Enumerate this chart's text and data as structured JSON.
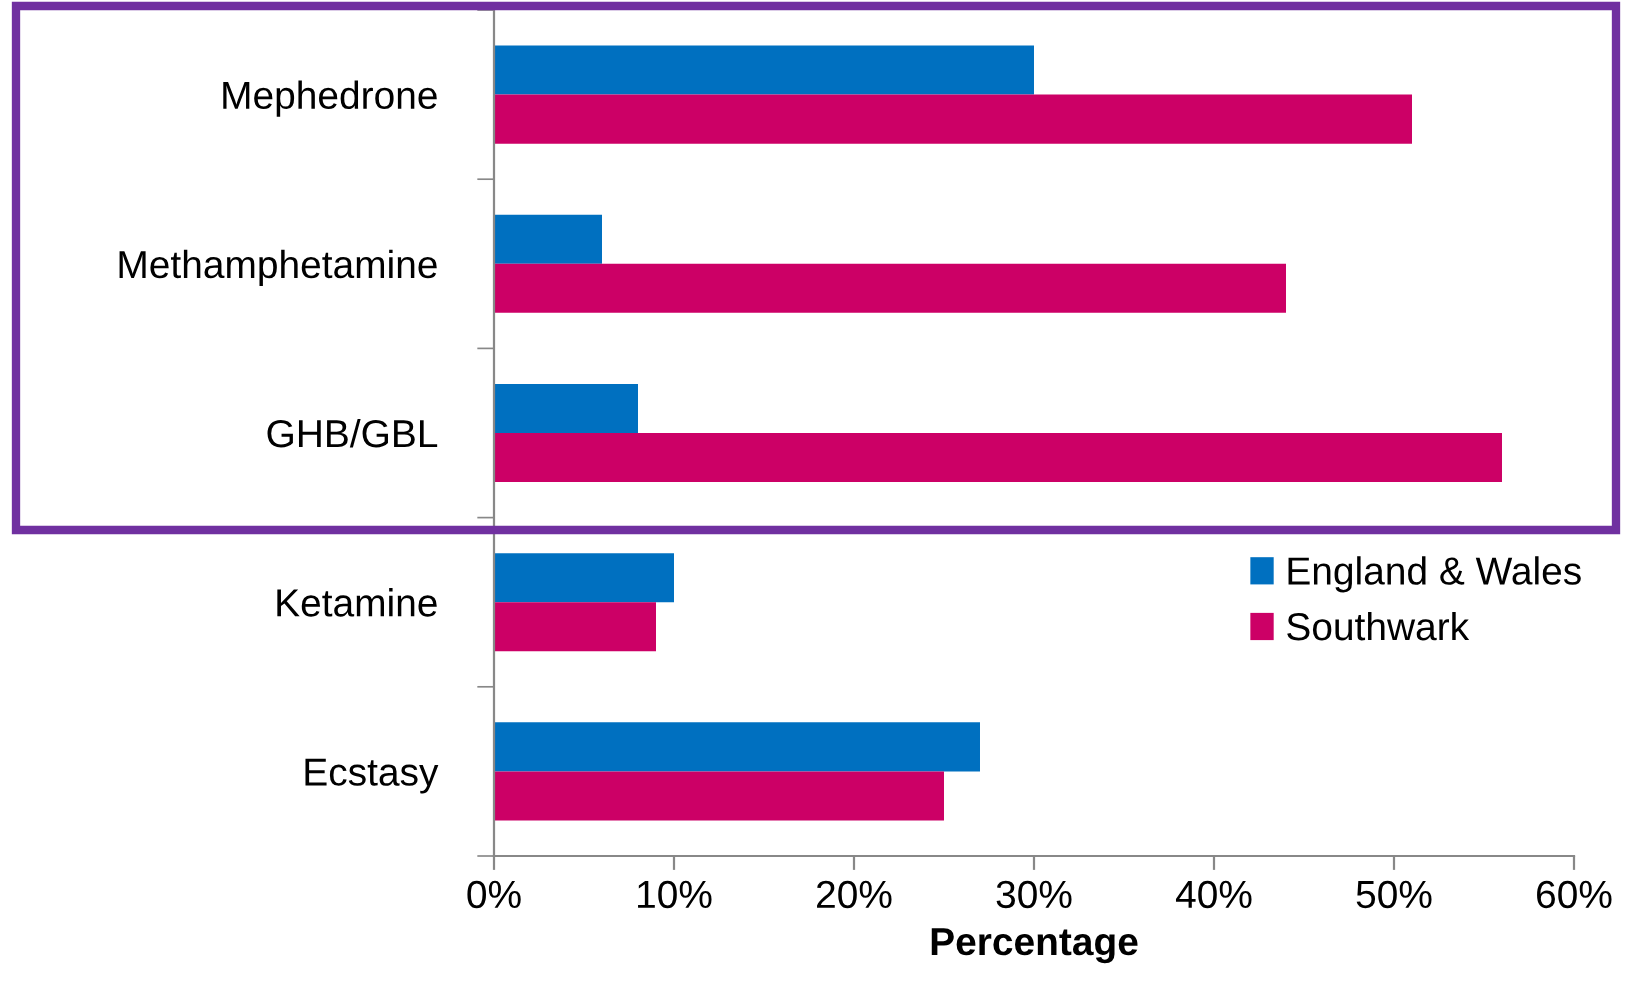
{
  "chart_data": {
    "type": "bar",
    "orientation": "horizontal",
    "xlabel": "Percentage",
    "categories": [
      "Mephedrone",
      "Methamphetamine",
      "GHB/GBL",
      "Ketamine",
      "Ecstasy"
    ],
    "series": [
      {
        "name": "England & Wales",
        "color": "#0070c0",
        "values": [
          30,
          6,
          8,
          10,
          27
        ]
      },
      {
        "name": "Southwark",
        "color": "#cc0066",
        "values": [
          51,
          44,
          56,
          9,
          25
        ]
      }
    ],
    "xlim": [
      0,
      60
    ],
    "xticks": [
      {
        "value": 0,
        "label": "0%"
      },
      {
        "value": 10,
        "label": "10%"
      },
      {
        "value": 20,
        "label": "20%"
      },
      {
        "value": 30,
        "label": "30%"
      },
      {
        "value": 40,
        "label": "40%"
      },
      {
        "value": 50,
        "label": "50%"
      },
      {
        "value": 60,
        "label": "60%"
      }
    ],
    "legend": "right",
    "grid": false
  }
}
